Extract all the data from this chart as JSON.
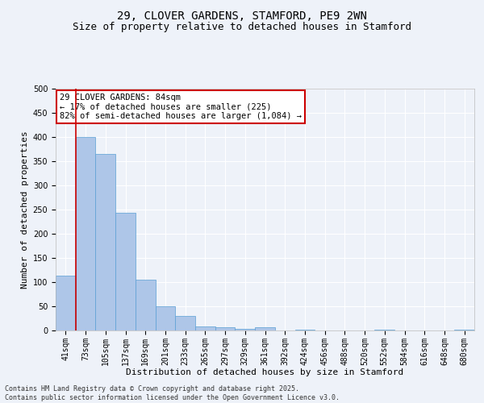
{
  "title_line1": "29, CLOVER GARDENS, STAMFORD, PE9 2WN",
  "title_line2": "Size of property relative to detached houses in Stamford",
  "xlabel": "Distribution of detached houses by size in Stamford",
  "ylabel": "Number of detached properties",
  "footer_line1": "Contains HM Land Registry data © Crown copyright and database right 2025.",
  "footer_line2": "Contains public sector information licensed under the Open Government Licence v3.0.",
  "categories": [
    "41sqm",
    "73sqm",
    "105sqm",
    "137sqm",
    "169sqm",
    "201sqm",
    "233sqm",
    "265sqm",
    "297sqm",
    "329sqm",
    "361sqm",
    "392sqm",
    "424sqm",
    "456sqm",
    "488sqm",
    "520sqm",
    "552sqm",
    "584sqm",
    "616sqm",
    "648sqm",
    "680sqm"
  ],
  "values": [
    113,
    400,
    365,
    243,
    105,
    50,
    30,
    8,
    6,
    3,
    6,
    0,
    1,
    0,
    0,
    0,
    2,
    0,
    0,
    0,
    1
  ],
  "bar_color": "#aec6e8",
  "bar_edge_color": "#5a9fd4",
  "annotation_text": "29 CLOVER GARDENS: 84sqm\n← 17% of detached houses are smaller (225)\n82% of semi-detached houses are larger (1,084) →",
  "annotation_box_color": "#ffffff",
  "annotation_box_edge_color": "#cc0000",
  "vline_color": "#cc0000",
  "vline_x": 1,
  "ylim": [
    0,
    500
  ],
  "yticks": [
    0,
    50,
    100,
    150,
    200,
    250,
    300,
    350,
    400,
    450,
    500
  ],
  "background_color": "#eef2f9",
  "grid_color": "#ffffff",
  "title_fontsize": 10,
  "subtitle_fontsize": 9,
  "axis_label_fontsize": 8,
  "tick_fontsize": 7,
  "annotation_fontsize": 7.5,
  "footer_fontsize": 6
}
